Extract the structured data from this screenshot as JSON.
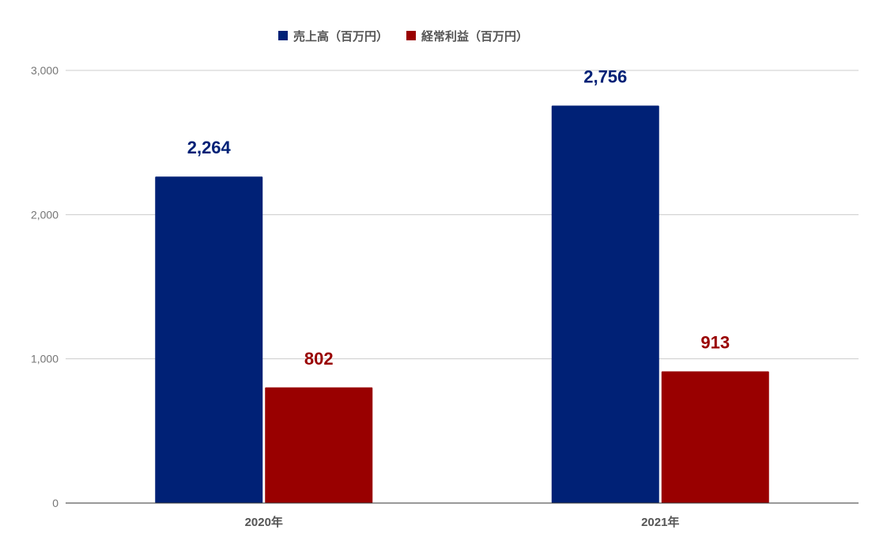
{
  "chart_data": {
    "type": "bar",
    "categories": [
      "2020年",
      "2021年"
    ],
    "series": [
      {
        "name": "売上高（百万円）",
        "values": [
          2264,
          2756
        ],
        "color": "#002176",
        "labels": [
          "2,264",
          "2,756"
        ]
      },
      {
        "name": "経常利益（百万円）",
        "values": [
          802,
          913
        ],
        "color": "#990000",
        "labels": [
          "802",
          "913"
        ]
      }
    ],
    "ylim": [
      0,
      3000
    ],
    "yticks": [
      0,
      1000,
      2000,
      3000
    ],
    "ytick_labels": [
      "0",
      "1,000",
      "2,000",
      "3,000"
    ],
    "grid": true,
    "legend_position": "top-center",
    "title": "",
    "xlabel": "",
    "ylabel": ""
  }
}
